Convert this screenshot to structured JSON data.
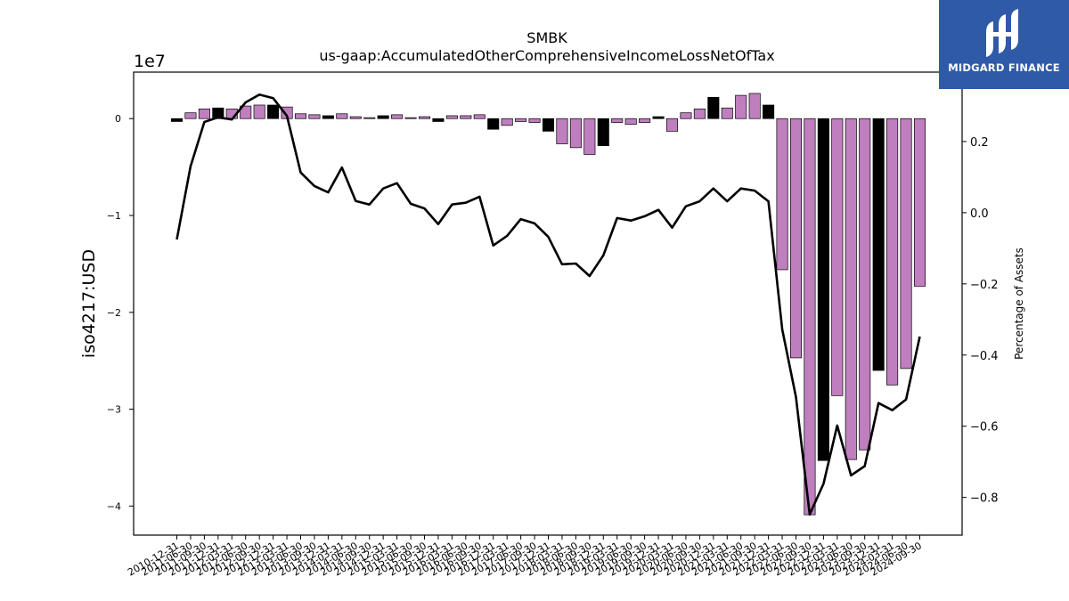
{
  "chart_data": {
    "type": "bar",
    "title": "SMBK",
    "subtitle": "us-gaap:AccumulatedOtherComprehensiveIncomeLossNetOfTax",
    "ylabel": "iso4217:USD",
    "y2label": "Percentage of Assets",
    "y_scale_label": "1e7",
    "ylim": [
      -4.3,
      0.48
    ],
    "y2lim": [
      -0.906,
      0.395
    ],
    "yticks": [
      0,
      -1,
      -2,
      -3,
      -4
    ],
    "y2ticks": [
      0.2,
      0.0,
      -0.2,
      -0.4,
      -0.6,
      -0.8
    ],
    "grid": false,
    "categories": [
      "2010-12-31",
      "2011-06-30",
      "2011-09-30",
      "2011-12-31",
      "2012-03-31",
      "2012-06-30",
      "2012-09-30",
      "2012-12-31",
      "2013-03-31",
      "2013-06-30",
      "2013-09-30",
      "2013-12-31",
      "2014-03-31",
      "2014-06-30",
      "2014-09-30",
      "2014-12-31",
      "2015-03-31",
      "2015-06-30",
      "2015-09-30",
      "2015-12-31",
      "2016-03-31",
      "2016-06-30",
      "2016-09-30",
      "2016-12-31",
      "2017-03-31",
      "2017-06-30",
      "2017-09-30",
      "2017-12-31",
      "2018-03-31",
      "2018-06-30",
      "2018-09-30",
      "2018-12-31",
      "2019-03-31",
      "2019-06-30",
      "2019-09-30",
      "2019-12-31",
      "2020-03-31",
      "2020-06-30",
      "2020-09-30",
      "2020-12-31",
      "2021-03-31",
      "2021-06-30",
      "2021-09-30",
      "2021-12-31",
      "2022-03-31",
      "2022-06-30",
      "2022-09-30",
      "2022-12-31",
      "2023-03-31",
      "2023-06-30",
      "2023-09-30",
      "2023-12-31",
      "2024-03-31",
      "2024-06-30",
      "2024-09-30"
    ],
    "series": [
      {
        "kind": "bar",
        "values": [
          -0.03,
          0.06,
          0.1,
          0.11,
          0.1,
          0.13,
          0.14,
          0.14,
          0.12,
          0.05,
          0.04,
          0.03,
          0.05,
          0.02,
          0.01,
          0.03,
          0.04,
          0.01,
          0.02,
          -0.03,
          0.03,
          0.03,
          0.04,
          -0.11,
          -0.07,
          -0.03,
          -0.04,
          -0.13,
          -0.26,
          -0.3,
          -0.37,
          -0.28,
          -0.04,
          -0.06,
          -0.04,
          0.02,
          -0.13,
          0.06,
          0.1,
          0.22,
          0.11,
          0.24,
          0.26,
          0.14,
          -1.56,
          -2.47,
          -4.09,
          -3.53,
          -2.86,
          -3.52,
          -3.42,
          -2.6,
          -2.75,
          -2.58,
          -1.73
        ],
        "highlight": [
          true,
          false,
          false,
          true,
          false,
          false,
          false,
          true,
          false,
          false,
          false,
          true,
          false,
          false,
          false,
          true,
          false,
          false,
          false,
          true,
          false,
          false,
          false,
          true,
          false,
          false,
          false,
          true,
          false,
          false,
          false,
          true,
          false,
          false,
          false,
          true,
          false,
          false,
          false,
          true,
          false,
          false,
          false,
          true,
          false,
          false,
          false,
          true,
          false,
          false,
          false,
          true,
          false,
          false,
          false
        ]
      },
      {
        "kind": "line",
        "axis": "right",
        "values": [
          -0.075,
          0.13,
          0.255,
          0.268,
          0.262,
          0.31,
          0.332,
          0.322,
          0.272,
          0.113,
          0.075,
          0.057,
          0.127,
          0.033,
          0.023,
          0.068,
          0.083,
          0.025,
          0.012,
          -0.032,
          0.023,
          0.028,
          0.045,
          -0.092,
          -0.065,
          -0.018,
          -0.03,
          -0.068,
          -0.145,
          -0.143,
          -0.178,
          -0.12,
          -0.015,
          -0.022,
          -0.01,
          0.008,
          -0.042,
          0.018,
          0.032,
          0.068,
          0.032,
          0.068,
          0.062,
          0.032,
          -0.328,
          -0.518,
          -0.848,
          -0.762,
          -0.598,
          -0.738,
          -0.712,
          -0.535,
          -0.555,
          -0.525,
          -0.348
        ]
      }
    ],
    "colors": {
      "bar_regular": "#bf7fbf",
      "bar_highlight": "#000000",
      "line": "#000000"
    }
  },
  "logo": {
    "text": "MIDGARD FINANCE",
    "color": "#2f5aa8"
  }
}
